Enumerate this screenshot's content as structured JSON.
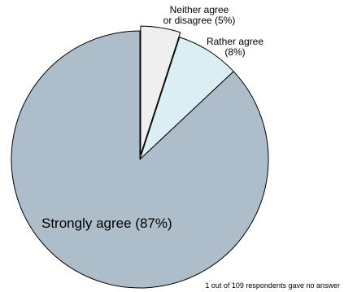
{
  "chart_data": {
    "type": "pie",
    "slices": [
      {
        "label": "Neither agree",
        "label_line2": "or disagree (5%)",
        "value": 5,
        "color": "#efefef",
        "exploded": true
      },
      {
        "label": "Rather agree",
        "label_line2": "(8%)",
        "value": 8,
        "color": "#dbeef4",
        "exploded": false
      },
      {
        "label": "Strongly agree (87%)",
        "label_line2": "",
        "value": 87,
        "color": "#adbdc9",
        "exploded": false
      }
    ],
    "start_angle_deg": 0,
    "direction": "clockwise",
    "footnote": "1 out of 109 respondents gave no answer"
  }
}
